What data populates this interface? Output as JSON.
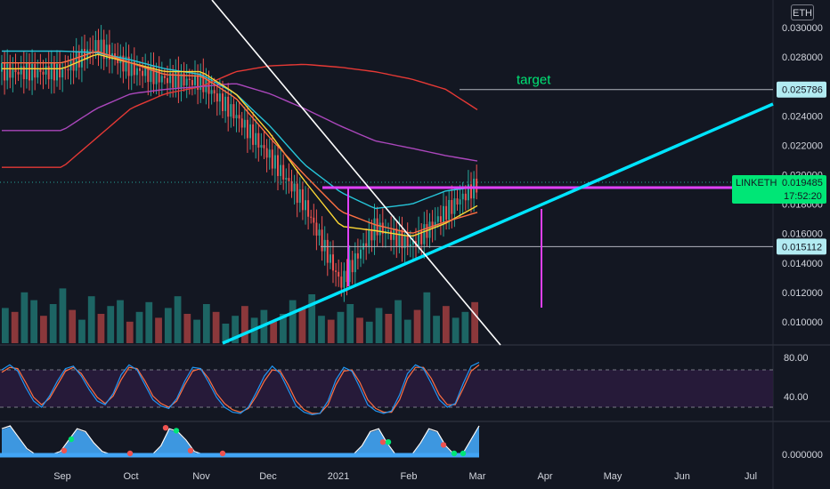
{
  "currency": "ETH",
  "chart_data": {
    "type": "candlestick",
    "symbol": "LINKETH",
    "quote_currency": "ETH",
    "x_labels": [
      "Sep",
      "Oct",
      "Nov",
      "Dec",
      "2021",
      "Feb",
      "Mar",
      "Apr",
      "May",
      "Jun",
      "Jul"
    ],
    "price_axis": {
      "ticks": [
        "0.030000",
        "0.028000",
        "0.026000",
        "0.024000",
        "0.022000",
        "0.020000",
        "0.018000",
        "0.016000",
        "0.014000",
        "0.012000",
        "0.010000"
      ],
      "ylim": [
        0.0088,
        0.0309
      ]
    },
    "price_series": {
      "name": "LINKETH",
      "dates": [
        "2020-09-01",
        "2020-09-16",
        "2020-10-01",
        "2020-10-16",
        "2020-11-01",
        "2020-11-16",
        "2020-12-01",
        "2020-12-16",
        "2021-01-01",
        "2021-01-16",
        "2021-02-01",
        "2021-02-16",
        "2021-03-03"
      ],
      "close": [
        0.027,
        0.0288,
        0.0272,
        0.0265,
        0.0263,
        0.024,
        0.0212,
        0.018,
        0.0126,
        0.0165,
        0.0152,
        0.0175,
        0.0195
      ]
    },
    "moving_averages": [
      {
        "color": "#26c6da",
        "values": [
          0.0284,
          0.0283,
          0.0278,
          0.0272,
          0.0268,
          0.0255,
          0.0233,
          0.0207,
          0.0188,
          0.0177,
          0.018,
          0.0189,
          0.0192
        ]
      },
      {
        "color": "#e53935",
        "values": [
          0.0205,
          0.0225,
          0.0245,
          0.0255,
          0.026,
          0.027,
          0.0274,
          0.0275,
          0.0273,
          0.027,
          0.0265,
          0.0258,
          0.0243
        ]
      },
      {
        "color": "#ab47bc",
        "values": [
          0.023,
          0.0245,
          0.0255,
          0.0258,
          0.026,
          0.0262,
          0.0255,
          0.0245,
          0.0233,
          0.0223,
          0.0218,
          0.0213,
          0.0209
        ]
      },
      {
        "color": "#fdd835",
        "values": [
          0.0272,
          0.0282,
          0.0276,
          0.027,
          0.027,
          0.0255,
          0.0228,
          0.0196,
          0.0165,
          0.0162,
          0.0158,
          0.0167,
          0.018
        ]
      },
      {
        "color": "#ff7043",
        "values": [
          0.0276,
          0.0284,
          0.0276,
          0.0268,
          0.0267,
          0.0252,
          0.0225,
          0.02,
          0.0175,
          0.0166,
          0.016,
          0.0168,
          0.0175
        ]
      }
    ],
    "horizontal_levels": [
      {
        "label": "target",
        "value": 0.025786,
        "tag": "0.025786"
      },
      {
        "label": "",
        "value": 0.015112,
        "tag": "0.015112"
      }
    ],
    "current_price": {
      "symbol": "LINKETH",
      "value": "0.019485",
      "countdown": "17:52:20"
    },
    "annotations": {
      "target_label": "target"
    },
    "volume_bars": [
      18,
      16,
      26,
      22,
      14,
      20,
      28,
      17,
      12,
      24,
      15,
      19,
      22,
      11,
      16,
      21,
      13,
      18,
      24,
      15,
      12,
      20,
      16,
      10,
      14,
      19,
      13,
      17,
      11,
      15,
      22,
      18,
      25,
      14,
      12,
      16,
      20,
      13,
      11,
      18,
      15,
      22,
      12,
      17,
      26,
      14,
      19,
      13,
      16,
      21
    ],
    "stoch_rsi": {
      "ticks": [
        "80.00",
        "40.00"
      ],
      "ylim": [
        0,
        100
      ],
      "k": [
        80,
        88,
        78,
        52,
        30,
        20,
        38,
        62,
        82,
        86,
        70,
        48,
        30,
        24,
        42,
        72,
        88,
        80,
        56,
        32,
        22,
        18,
        34,
        62,
        84,
        82,
        60,
        36,
        20,
        12,
        10,
        20,
        44,
        70,
        86,
        74,
        48,
        22,
        12,
        8,
        10,
        30,
        64,
        84,
        78,
        52,
        24,
        14,
        10,
        14,
        40,
        74,
        88,
        82,
        58,
        32,
        20,
        26,
        58,
        86,
        92
      ],
      "d": [
        76,
        84,
        82,
        60,
        36,
        24,
        34,
        56,
        78,
        84,
        74,
        54,
        36,
        26,
        38,
        64,
        84,
        82,
        62,
        38,
        26,
        20,
        30,
        56,
        78,
        82,
        66,
        42,
        26,
        16,
        12,
        18,
        38,
        62,
        80,
        78,
        56,
        30,
        16,
        10,
        10,
        24,
        56,
        78,
        80,
        60,
        32,
        18,
        12,
        12,
        32,
        66,
        84,
        84,
        66,
        40,
        24,
        24,
        50,
        78,
        88
      ]
    },
    "momentum": {
      "ticks": [
        "0.000000"
      ],
      "values": [
        0.9,
        1.0,
        0.6,
        0.2,
        0.0,
        0.0,
        0.0,
        0.1,
        0.5,
        0.9,
        0.8,
        0.4,
        0.1,
        0.0,
        0.0,
        0.0,
        0.0,
        0.0,
        0.0,
        0.3,
        0.9,
        0.8,
        0.5,
        0.1,
        0.0,
        0.0,
        0.0,
        0.0,
        0.0,
        0.0,
        0.0,
        0.0,
        0.0,
        0.0,
        0.0,
        0.0,
        0.0,
        0.0,
        0.0,
        0.0,
        0.0,
        0.0,
        0.0,
        0.3,
        0.8,
        0.9,
        0.4,
        0.0,
        0.0,
        0.0,
        0.4,
        0.9,
        0.8,
        0.3,
        0.0,
        0.0,
        0.5,
        1.0
      ]
    }
  }
}
